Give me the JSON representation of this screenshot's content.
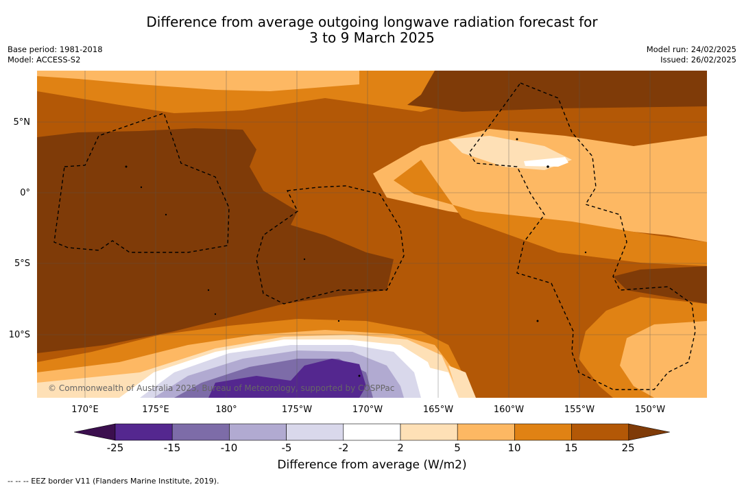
{
  "title_line1": "Difference from average outgoing longwave radiation forecast for",
  "title_line2": "3 to 9 March 2025",
  "base_period": "Base period: 1981-2018",
  "model": "Model: ACCESS-S2",
  "model_run": "Model run: 24/02/2025",
  "issued": "Issued: 26/02/2025",
  "lat_labels": [
    "5°N",
    "0°",
    "5°S",
    "10°S"
  ],
  "lon_labels": [
    "170°E",
    "175°E",
    "180°",
    "175°W",
    "170°W",
    "165°W",
    "160°W",
    "155°W",
    "150°W"
  ],
  "credit": "© Commonwealth of Australia 2025, Bureau of Meteorology, supported by COSPPac",
  "colorbar": {
    "ticks": [
      "-25",
      "-15",
      "-10",
      "-5",
      "-2",
      "2",
      "5",
      "10",
      "15",
      "25"
    ],
    "colors": [
      "#3b0f4e",
      "#54278f",
      "#7d6ca8",
      "#b1aad1",
      "#d9d8eb",
      "#ffffff",
      "#fee0b6",
      "#fdb863",
      "#e08214",
      "#b35806",
      "#7f3b08"
    ],
    "label": "Difference from average (W/m2)"
  },
  "footer": "-- -- -- EEZ border V11 (Flanders Marine Institute, 2019)."
}
